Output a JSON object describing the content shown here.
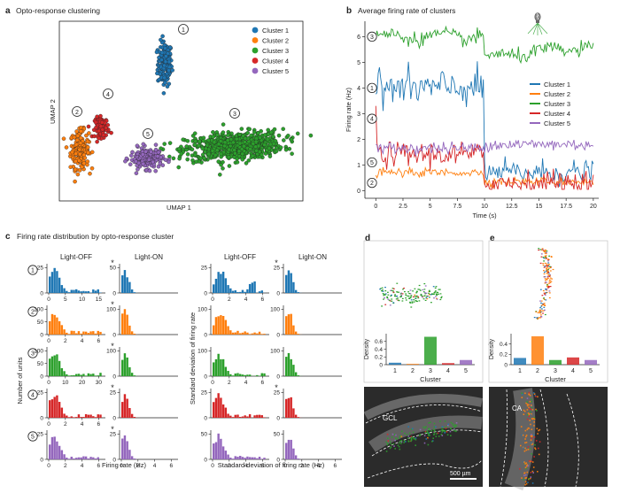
{
  "colors": {
    "cluster1": "#1f77b4",
    "cluster2": "#ff7f0e",
    "cluster3": "#2ca02c",
    "cluster4": "#d62728",
    "cluster5": "#9467bd",
    "microscopy_bg": "#2b2b2b"
  },
  "panel_a": {
    "letter": "a",
    "title": "Opto-response clustering",
    "xlabel": "UMAP 1",
    "ylabel": "UMAP 2",
    "legend": [
      "Cluster 1",
      "Cluster 2",
      "Cluster 3",
      "Cluster 4",
      "Cluster 5"
    ],
    "cluster_numbers": [
      "1",
      "2",
      "3",
      "4",
      "5"
    ]
  },
  "panel_b": {
    "letter": "b",
    "title": "Average firing rate of clusters",
    "icon": "light-bulb-icon"
  },
  "panel_c": {
    "letter": "c",
    "title": "Firing rate distribution by opto-response cluster",
    "col_headers": [
      "Light-OFF",
      "Light-ON",
      "Light-OFF",
      "Light-ON"
    ],
    "ylabel_left": "Number of units",
    "ylabel_right": "Standard deviation of firing rate",
    "xlabel_left": "Firing rate (Hz)",
    "xlabel_right": "Standard deviation of firing rate (Hz)",
    "row_labels": [
      "1",
      "2",
      "3",
      "4",
      "5"
    ],
    "asterisk": "*"
  },
  "panel_d": {
    "letter": "d",
    "xlabel": "Cluster",
    "ylabel": "Density",
    "image_label": "GCL",
    "scale_bar": "500 µm"
  },
  "panel_e": {
    "letter": "e",
    "xlabel": "Cluster",
    "ylabel": "Density",
    "image_label": "CA"
  },
  "chart_data": [
    {
      "id": "a",
      "type": "scatter",
      "title": "Opto-response clustering",
      "xlabel": "UMAP 1",
      "ylabel": "UMAP 2",
      "legend_position": "top-right",
      "series": [
        {
          "name": "Cluster 1",
          "center": [
            5.2,
            8.0
          ],
          "spread": [
            0.35,
            1.3
          ],
          "count": 160
        },
        {
          "name": "Cluster 2",
          "center": [
            1.0,
            3.0
          ],
          "spread": [
            0.45,
            1.1
          ],
          "count": 170
        },
        {
          "name": "Cluster 3",
          "center": [
            8.6,
            3.2
          ],
          "spread": [
            2.4,
            0.8
          ],
          "count": 700
        },
        {
          "name": "Cluster 4",
          "center": [
            2.1,
            4.3
          ],
          "spread": [
            0.35,
            0.6
          ],
          "count": 80
        },
        {
          "name": "Cluster 5",
          "center": [
            4.3,
            2.5
          ],
          "spread": [
            0.8,
            0.6
          ],
          "count": 170
        }
      ]
    },
    {
      "id": "b",
      "type": "line",
      "title": "Average firing rate of clusters",
      "xlabel": "Time (s)",
      "ylabel": "Firing rate (Hz)",
      "xlim": [
        -1,
        20.5
      ],
      "ylim": [
        -0.3,
        6.6
      ],
      "xticks": [
        0,
        2.5,
        5,
        7.5,
        10,
        12.5,
        15,
        17.5,
        20
      ],
      "xtick_labels": [
        "0",
        "2.5",
        "5",
        "7.5",
        "10",
        "12.5",
        "15",
        "17.5",
        "20"
      ],
      "yticks": [
        0,
        1,
        2,
        3,
        4,
        5,
        6
      ],
      "legend_position": "right",
      "series": [
        {
          "name": "Cluster 1",
          "pre": 4.0,
          "post": 0.7,
          "step_at": 10
        },
        {
          "name": "Cluster 2",
          "pre": 0.7,
          "post": 0.35,
          "step_at": 10
        },
        {
          "name": "Cluster 3",
          "pre": 6.0,
          "post": 5.2,
          "step_at": 10
        },
        {
          "name": "Cluster 4",
          "pre": 1.4,
          "post": 0.3,
          "step_at": 10
        },
        {
          "name": "Cluster 5",
          "pre": 1.65,
          "post": 1.8,
          "step_at": 10
        }
      ],
      "cluster_markers": [
        "3",
        "1",
        "4",
        "5",
        "2"
      ]
    },
    {
      "id": "c",
      "type": "bar",
      "title": "Firing rate distribution by opto-response cluster",
      "columns": [
        "Light-OFF",
        "Light-ON",
        "Light-OFF",
        "Light-ON"
      ],
      "rows": [
        {
          "cluster": "1",
          "yticks": [
            [
              0,
              25
            ],
            [
              0,
              50
            ],
            [
              0,
              25
            ],
            [
              0,
              25
            ]
          ],
          "xticks": [
            [
              0,
              5,
              10,
              15
            ],
            null,
            [
              0,
              2,
              4,
              6
            ],
            null
          ]
        },
        {
          "cluster": "2",
          "yticks": [
            [
              0,
              50,
              100
            ],
            [
              0,
              100
            ],
            [
              0,
              100
            ],
            [
              0,
              100
            ]
          ],
          "xticks": [
            [
              0,
              2,
              4,
              6
            ],
            null,
            null,
            null
          ]
        },
        {
          "cluster": "3",
          "yticks": [
            [
              0,
              50,
              100
            ],
            [
              0,
              100
            ],
            [
              0,
              100
            ],
            [
              0,
              100
            ]
          ],
          "xticks": [
            [
              0,
              10,
              20,
              30
            ],
            null,
            [
              0,
              2,
              4,
              6
            ],
            null
          ]
        },
        {
          "cluster": "4",
          "yticks": [
            [
              0,
              25
            ],
            [
              0,
              25
            ],
            [
              0,
              25
            ],
            [
              0,
              25
            ]
          ],
          "xticks": [
            [
              0,
              2,
              4,
              6
            ],
            null,
            null,
            null
          ]
        },
        {
          "cluster": "5",
          "yticks": [
            [
              0,
              25
            ],
            [
              0,
              25
            ],
            [
              0,
              50
            ],
            [
              0,
              50
            ]
          ],
          "xticks": [
            [
              0,
              2,
              4,
              6
            ],
            [
              0,
              2,
              4,
              6
            ],
            [
              0,
              2,
              4,
              6
            ],
            [
              0,
              2,
              4,
              6
            ]
          ]
        }
      ]
    },
    {
      "id": "d",
      "type": "bar",
      "xlabel": "Cluster",
      "ylabel": "Density",
      "categories": [
        "1",
        "2",
        "3",
        "4",
        "5"
      ],
      "values": [
        0.05,
        0.02,
        0.72,
        0.04,
        0.12
      ],
      "ylim": [
        0,
        0.8
      ],
      "yticks": [
        0,
        0.2,
        0.4,
        0.6
      ]
    },
    {
      "id": "e",
      "type": "bar",
      "xlabel": "Cluster",
      "ylabel": "Density",
      "categories": [
        "1",
        "2",
        "3",
        "4",
        "5"
      ],
      "values": [
        0.13,
        0.55,
        0.09,
        0.14,
        0.09
      ],
      "ylim": [
        0,
        0.6
      ],
      "yticks": [
        0,
        0.2,
        0.4
      ]
    }
  ]
}
